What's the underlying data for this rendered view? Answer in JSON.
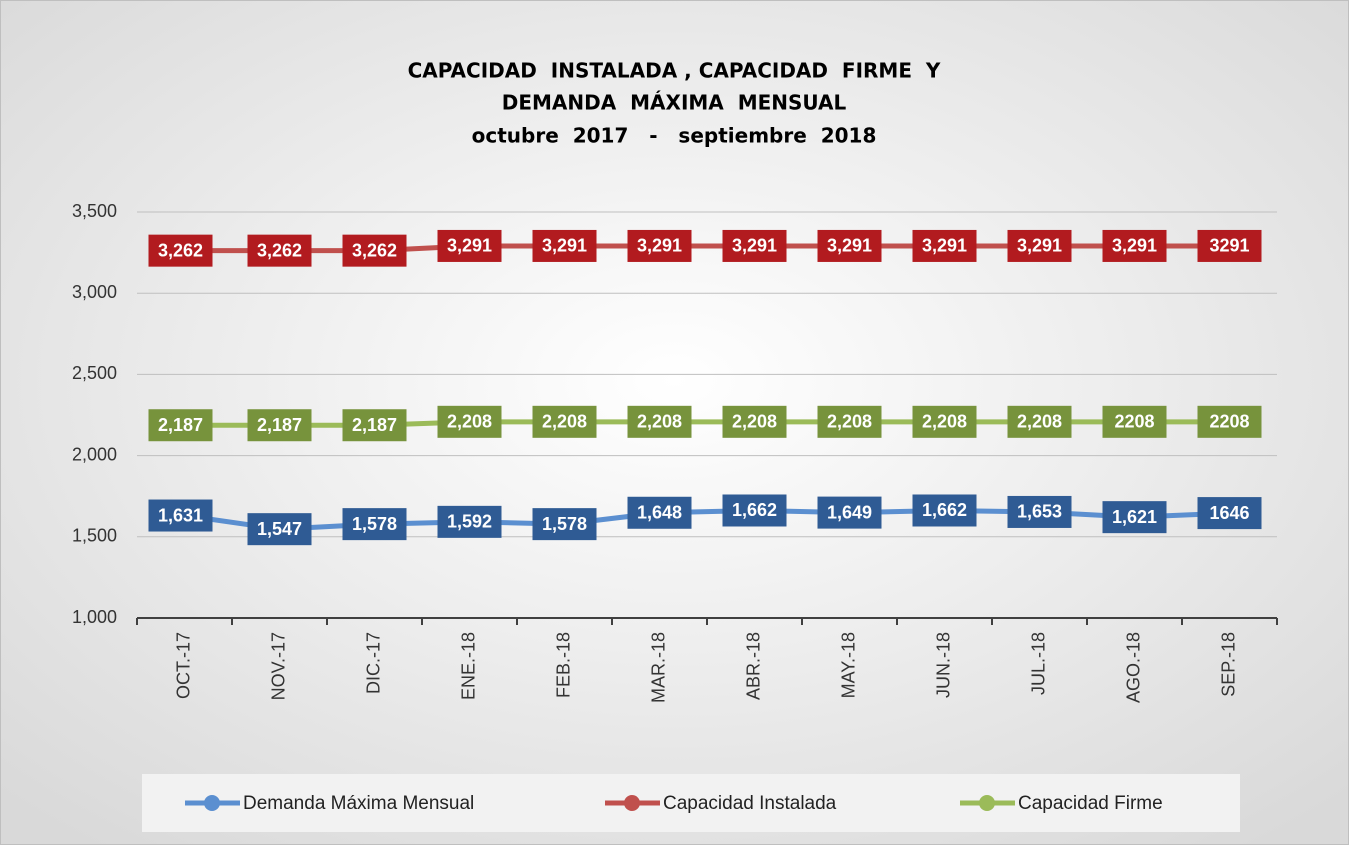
{
  "chart_data": {
    "type": "line",
    "title": [
      "CAPACIDAD  INSTALADA , CAPACIDAD  FIRME  Y",
      "DEMANDA  MÁXIMA  MENSUAL"
    ],
    "subtitle": "octubre  2017   -   septiembre  2018",
    "categories": [
      "OCT.-17",
      "NOV.-17",
      "DIC.-17",
      "ENE.-18",
      "FEB.-18",
      "MAR.-18",
      "ABR.-18",
      "MAY.-18",
      "JUN.-18",
      "JUL.-18",
      "AGO.-18",
      "SEP.-18"
    ],
    "series": [
      {
        "name": "Demanda Máxima Mensual",
        "color": "#5b8fd0",
        "label_color": "#2f5b94",
        "values": [
          1631,
          1547,
          1578,
          1592,
          1578,
          1648,
          1662,
          1649,
          1662,
          1653,
          1621,
          1646
        ],
        "value_labels": [
          "1,631",
          "1,547",
          "1,578",
          "1,592",
          "1,578",
          "1,648",
          "1,662",
          "1,649",
          "1,662",
          "1,653",
          "1,621",
          "1646"
        ]
      },
      {
        "name": "Capacidad Instalada",
        "color": "#c0504d",
        "label_color": "#b21b1f",
        "values": [
          3262,
          3262,
          3262,
          3291,
          3291,
          3291,
          3291,
          3291,
          3291,
          3291,
          3291,
          3291
        ],
        "value_labels": [
          "3,262",
          "3,262",
          "3,262",
          "3,291",
          "3,291",
          "3,291",
          "3,291",
          "3,291",
          "3,291",
          "3,291",
          "3,291",
          "3291"
        ]
      },
      {
        "name": "Capacidad Firme",
        "color": "#9bbb59",
        "label_color": "#77933c",
        "values": [
          2187,
          2187,
          2187,
          2208,
          2208,
          2208,
          2208,
          2208,
          2208,
          2208,
          2208,
          2208
        ],
        "value_labels": [
          "2,187",
          "2,187",
          "2,187",
          "2,208",
          "2,208",
          "2,208",
          "2,208",
          "2,208",
          "2,208",
          "2,208",
          "2208",
          "2208"
        ]
      }
    ],
    "ylim": [
      1000,
      3500
    ],
    "yticks": [
      {
        "value": 1000,
        "label": "1,000"
      },
      {
        "value": 1500,
        "label": "1,500"
      },
      {
        "value": 2000,
        "label": "2,000"
      },
      {
        "value": 2500,
        "label": "2,500"
      },
      {
        "value": 3000,
        "label": "3,000"
      },
      {
        "value": 3500,
        "label": "3,500"
      }
    ],
    "grid": true,
    "legend": "bottom"
  }
}
